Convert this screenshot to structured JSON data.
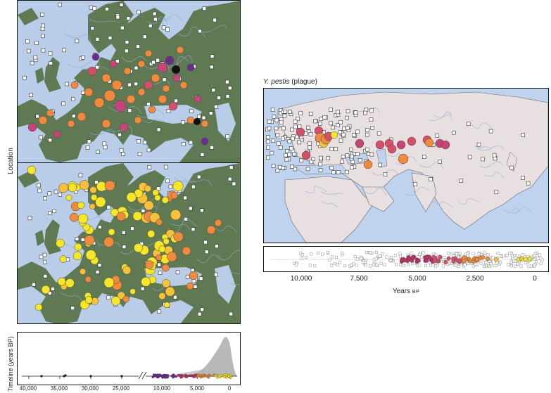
{
  "left": {
    "location_label": "Location",
    "timeline_label": "Timeline (years BP)",
    "timeline_ticks": [
      "40,000",
      "35,000",
      "30,000",
      "25,000",
      "10,000",
      "5,000",
      "0"
    ]
  },
  "right": {
    "title_italic": "Y. pestis",
    "title_rest": " (plague)",
    "axis_ticks": [
      "10,000",
      "7,500",
      "5,000",
      "2,500",
      "0"
    ],
    "axis_title": "Years",
    "axis_unit": "BP"
  },
  "colors": {
    "sea": "#b9cde8",
    "land": "#5f7a52",
    "land_light": "#e8e0e0",
    "sea_right": "#bfd3ee",
    "old": "#6b2c8f",
    "magenta": "#b8336a",
    "orange": "#f08a3c",
    "yellow": "#f5e62a",
    "sample_box": "#ffffff",
    "density": "#b8b8b8"
  }
}
